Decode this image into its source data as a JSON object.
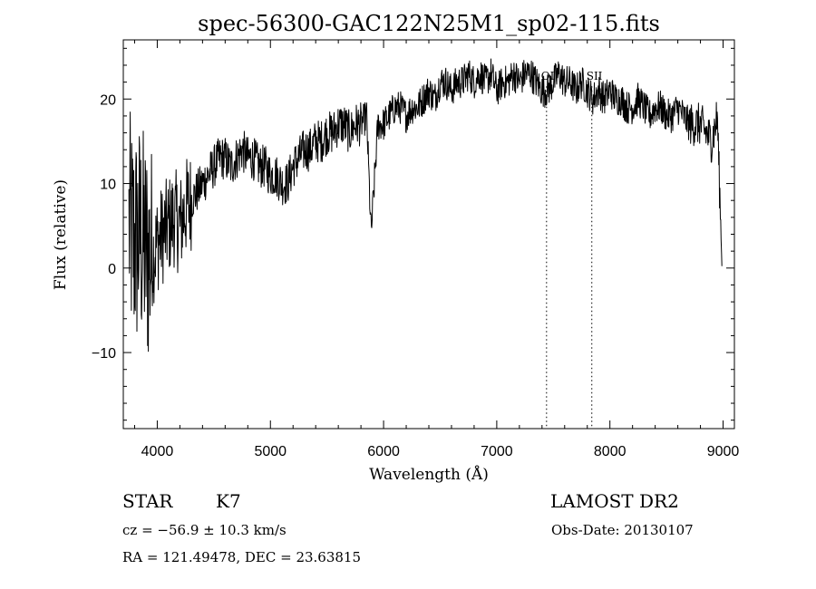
{
  "chart_data": {
    "type": "line",
    "title": "spec-56300-GAC122N25M1_sp02-115.fits",
    "xlabel": "Wavelength (Å)",
    "ylabel": "Flux (relative)",
    "xlim": [
      3700,
      9100
    ],
    "ylim": [
      -19,
      27
    ],
    "x_ticks": [
      4000,
      5000,
      6000,
      7000,
      8000,
      9000
    ],
    "x_tick_labels": [
      "4000",
      "5000",
      "6000",
      "7000",
      "8000",
      "9000"
    ],
    "y_ticks": [
      -10,
      0,
      10,
      20
    ],
    "y_tick_labels": [
      "−10",
      "0",
      "10",
      "20"
    ],
    "grid": false,
    "series": [
      {
        "x": [
          3750,
          3800,
          3850,
          3900,
          3950,
          4000,
          4050,
          4100,
          4150,
          4200,
          4250,
          4300,
          4350,
          4400,
          4450,
          4500,
          4550,
          4600,
          4650,
          4700,
          4750,
          4800,
          4850,
          4900,
          4950,
          5000,
          5050,
          5100,
          5150,
          5200,
          5250,
          5300,
          5350,
          5400,
          5450,
          5500,
          5550,
          5600,
          5650,
          5700,
          5750,
          5800,
          5850,
          5890,
          5950,
          6000,
          6050,
          6100,
          6150,
          6200,
          6250,
          6300,
          6350,
          6400,
          6450,
          6500,
          6550,
          6600,
          6650,
          6700,
          6750,
          6800,
          6850,
          6900,
          6950,
          7000,
          7050,
          7100,
          7150,
          7200,
          7250,
          7300,
          7350,
          7400,
          7450,
          7500,
          7550,
          7600,
          7650,
          7700,
          7750,
          7800,
          7850,
          7900,
          7950,
          8000,
          8050,
          8100,
          8150,
          8200,
          8250,
          8300,
          8350,
          8400,
          8450,
          8500,
          8550,
          8600,
          8650,
          8700,
          8750,
          8800,
          8850,
          8900,
          8950,
          8990
        ],
        "values": [
          5,
          3,
          4,
          2,
          1,
          3,
          4,
          5,
          6,
          5,
          7,
          8,
          9,
          10,
          11,
          12,
          13,
          13,
          12,
          13,
          14,
          13,
          13,
          12,
          12,
          11,
          11,
          10,
          10,
          12,
          13,
          14,
          14,
          15,
          15,
          16,
          16,
          17,
          17,
          16,
          17,
          17,
          18,
          4,
          17,
          17,
          18,
          19,
          19,
          18,
          19,
          19,
          20,
          21,
          20,
          22,
          22,
          21,
          22,
          22,
          23,
          22,
          23,
          22,
          23,
          21,
          22,
          22,
          23,
          22,
          23,
          23,
          22,
          21,
          21,
          22,
          23,
          22,
          22,
          21,
          22,
          21,
          20,
          21,
          20,
          21,
          20,
          20,
          19,
          19,
          20,
          19,
          18,
          19,
          19,
          18,
          18,
          19,
          18,
          17,
          17,
          17,
          16,
          15,
          18,
          0
        ]
      }
    ],
    "line_markers": [
      {
        "label": "OI",
        "x": 7440
      },
      {
        "label": "SII",
        "x": 7840
      }
    ]
  },
  "info": {
    "class_label": "STAR",
    "subclass": "K7",
    "survey": "LAMOST DR2",
    "cz": "cz = −56.9 ± 10.3 km/s",
    "obs_date": "Obs-Date: 20130107",
    "coords": "RA = 121.49478, DEC =  23.63815"
  }
}
